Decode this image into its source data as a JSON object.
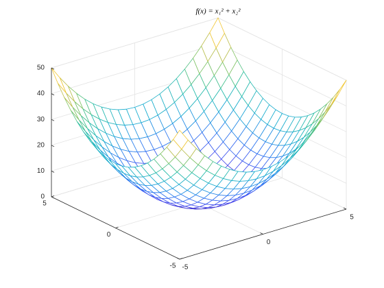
{
  "chart_data": {
    "type": "mesh3d",
    "title": "f(x) = x₁² + x₂²",
    "x": [
      -5,
      -4.5,
      -4,
      -3.5,
      -3,
      -2.5,
      -2,
      -1.5,
      -1,
      -0.5,
      0,
      0.5,
      1,
      1.5,
      2,
      2.5,
      3,
      3.5,
      4,
      4.5,
      5
    ],
    "y": [
      -5,
      -4.5,
      -4,
      -3.5,
      -3,
      -2.5,
      -2,
      -1.5,
      -1,
      -0.5,
      0,
      0.5,
      1,
      1.5,
      2,
      2.5,
      3,
      3.5,
      4,
      4.5,
      5
    ],
    "z": [
      [
        50,
        45.25,
        41,
        37.25,
        34,
        31.25,
        29,
        27.25,
        26,
        25.25,
        25,
        25.25,
        26,
        27.25,
        29,
        31.25,
        34,
        37.25,
        41,
        45.25,
        50
      ],
      [
        45.25,
        40.5,
        36.25,
        32.5,
        29.25,
        26.5,
        24.25,
        22.5,
        21.25,
        20.5,
        20.25,
        20.5,
        21.25,
        22.5,
        24.25,
        26.5,
        29.25,
        32.5,
        36.25,
        40.5,
        45.25
      ],
      [
        41,
        36.25,
        32,
        28.25,
        25,
        22.25,
        20,
        18.25,
        17,
        16.25,
        16,
        16.25,
        17,
        18.25,
        20,
        22.25,
        25,
        28.25,
        32,
        36.25,
        41
      ],
      [
        37.25,
        32.5,
        28.25,
        24.5,
        21.25,
        18.5,
        16.25,
        14.5,
        13.25,
        12.5,
        12.25,
        12.5,
        13.25,
        14.5,
        16.25,
        18.5,
        21.25,
        24.5,
        28.25,
        32.5,
        37.25
      ],
      [
        34,
        29.25,
        25,
        21.25,
        18,
        15.25,
        13,
        11.25,
        10,
        9.25,
        9,
        9.25,
        10,
        11.25,
        13,
        15.25,
        18,
        21.25,
        25,
        29.25,
        34
      ],
      [
        31.25,
        26.5,
        22.25,
        18.5,
        15.25,
        12.5,
        10.25,
        8.5,
        7.25,
        6.5,
        6.25,
        6.5,
        7.25,
        8.5,
        10.25,
        12.5,
        15.25,
        18.5,
        22.25,
        26.5,
        31.25
      ],
      [
        29,
        24.25,
        20,
        16.25,
        13,
        10.25,
        8,
        6.25,
        5,
        4.25,
        4,
        4.25,
        5,
        6.25,
        8,
        10.25,
        13,
        16.25,
        20,
        24.25,
        29
      ],
      [
        27.25,
        22.5,
        18.25,
        14.5,
        11.25,
        8.5,
        6.25,
        4.5,
        3.25,
        2.5,
        2.25,
        2.5,
        3.25,
        4.5,
        6.25,
        8.5,
        11.25,
        14.5,
        18.25,
        22.5,
        27.25
      ],
      [
        26,
        21.25,
        17,
        13.25,
        10,
        7.25,
        5,
        3.25,
        2,
        1.25,
        1,
        1.25,
        2,
        3.25,
        5,
        7.25,
        10,
        13.25,
        17,
        21.25,
        26
      ],
      [
        25.25,
        20.5,
        16.25,
        12.5,
        9.25,
        6.5,
        4.25,
        2.5,
        1.25,
        0.5,
        0.25,
        0.5,
        1.25,
        2.5,
        4.25,
        6.5,
        9.25,
        12.5,
        16.25,
        20.5,
        25.25
      ],
      [
        25,
        20.25,
        16,
        12.25,
        9,
        6.25,
        4,
        2.25,
        1,
        0.25,
        0,
        0.25,
        1,
        2.25,
        4,
        6.25,
        9,
        12.25,
        16,
        20.25,
        25
      ],
      [
        25.25,
        20.5,
        16.25,
        12.5,
        9.25,
        6.5,
        4.25,
        2.5,
        1.25,
        0.5,
        0.25,
        0.5,
        1.25,
        2.5,
        4.25,
        6.5,
        9.25,
        12.5,
        16.25,
        20.5,
        25.25
      ],
      [
        26,
        21.25,
        17,
        13.25,
        10,
        7.25,
        5,
        3.25,
        2,
        1.25,
        1,
        1.25,
        2,
        3.25,
        5,
        7.25,
        10,
        13.25,
        17,
        21.25,
        26
      ],
      [
        27.25,
        22.5,
        18.25,
        14.5,
        11.25,
        8.5,
        6.25,
        4.5,
        3.25,
        2.5,
        2.25,
        2.5,
        3.25,
        4.5,
        6.25,
        8.5,
        11.25,
        14.5,
        18.25,
        22.5,
        27.25
      ],
      [
        29,
        24.25,
        20,
        16.25,
        13,
        10.25,
        8,
        6.25,
        5,
        4.25,
        4,
        4.25,
        5,
        6.25,
        8,
        10.25,
        13,
        16.25,
        20,
        24.25,
        29
      ],
      [
        31.25,
        26.5,
        22.25,
        18.5,
        15.25,
        12.5,
        10.25,
        8.5,
        7.25,
        6.5,
        6.25,
        6.5,
        7.25,
        8.5,
        10.25,
        12.5,
        15.25,
        18.5,
        22.25,
        26.5,
        31.25
      ],
      [
        34,
        29.25,
        25,
        21.25,
        18,
        15.25,
        13,
        11.25,
        10,
        9.25,
        9,
        9.25,
        10,
        11.25,
        13,
        15.25,
        18,
        21.25,
        25,
        29.25,
        34
      ],
      [
        37.25,
        32.5,
        28.25,
        24.5,
        21.25,
        18.5,
        16.25,
        14.5,
        13.25,
        12.5,
        12.25,
        12.5,
        13.25,
        14.5,
        16.25,
        18.5,
        21.25,
        24.5,
        28.25,
        32.5,
        37.25
      ],
      [
        41,
        36.25,
        32,
        28.25,
        25,
        22.25,
        20,
        18.25,
        17,
        16.25,
        16,
        16.25,
        17,
        18.25,
        20,
        22.25,
        25,
        28.25,
        32,
        36.25,
        41
      ],
      [
        45.25,
        40.5,
        36.25,
        32.5,
        29.25,
        26.5,
        24.25,
        22.5,
        21.25,
        20.5,
        20.25,
        20.5,
        21.25,
        22.5,
        24.25,
        26.5,
        29.25,
        32.5,
        36.25,
        40.5,
        45.25
      ],
      [
        50,
        45.25,
        41,
        37.25,
        34,
        31.25,
        29,
        27.25,
        26,
        25.25,
        25,
        25.25,
        26,
        27.25,
        29,
        31.25,
        34,
        37.25,
        41,
        45.25,
        50
      ]
    ],
    "xlim": [
      -5,
      5
    ],
    "ylim": [
      -5,
      5
    ],
    "zlim": [
      0,
      50
    ],
    "xticks": [
      -5,
      0,
      5
    ],
    "yticks": [
      -5,
      0,
      5
    ],
    "zticks": [
      0,
      10,
      20,
      30,
      40,
      50
    ],
    "grid": true,
    "colormap": "parula"
  }
}
